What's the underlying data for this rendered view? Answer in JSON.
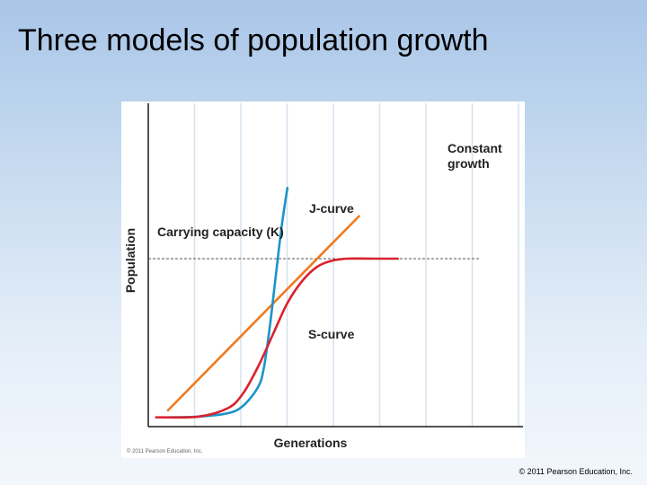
{
  "slide": {
    "title": "Three models of population growth",
    "copyright": "© 2011 Pearson Education, Inc."
  },
  "figure": {
    "copyright": "© 2011 Pearson Education, Inc."
  },
  "colors": {
    "j_curve": "#1a95c8",
    "s_curve": "#d9232e",
    "constant": "#f07a1e",
    "grid": "#d6e2ee",
    "axis": "#1a1a1a"
  },
  "chart_data": {
    "type": "line",
    "title": "",
    "xlabel": "Generations",
    "ylabel": "Population",
    "grid": true,
    "legend": "inline labels",
    "xlim": [
      0,
      10
    ],
    "ylim": [
      0,
      10
    ],
    "series": [
      {
        "name": "J-curve",
        "points": [
          [
            0,
            0.15
          ],
          [
            1,
            0.18
          ],
          [
            2,
            0.35
          ],
          [
            2.5,
            0.7
          ],
          [
            3,
            1.6
          ],
          [
            3.2,
            2.5
          ],
          [
            3.4,
            4.5
          ],
          [
            3.6,
            7
          ],
          [
            3.8,
            9.5
          ],
          [
            4.0,
            11.5
          ]
        ]
      },
      {
        "name": "Constant growth",
        "points": [
          [
            0,
            0.5
          ],
          [
            6.4,
            10.1
          ]
        ]
      },
      {
        "name": "S-curve",
        "points": [
          [
            -0.4,
            0.15
          ],
          [
            1,
            0.18
          ],
          [
            2,
            0.6
          ],
          [
            2.5,
            1.3
          ],
          [
            3,
            2.6
          ],
          [
            3.5,
            4.2
          ],
          [
            4,
            5.8
          ],
          [
            4.5,
            6.9
          ],
          [
            5,
            7.6
          ],
          [
            5.5,
            7.9
          ],
          [
            6,
            8.0
          ],
          [
            7,
            8.0
          ],
          [
            7.7,
            8.0
          ]
        ]
      }
    ],
    "carrying_capacity": {
      "label": "Carrying capacity (K)",
      "y": 8.0
    },
    "labels": {
      "constant": [
        "Constant",
        "growth"
      ],
      "j": "J-curve",
      "s": "S-curve"
    }
  }
}
